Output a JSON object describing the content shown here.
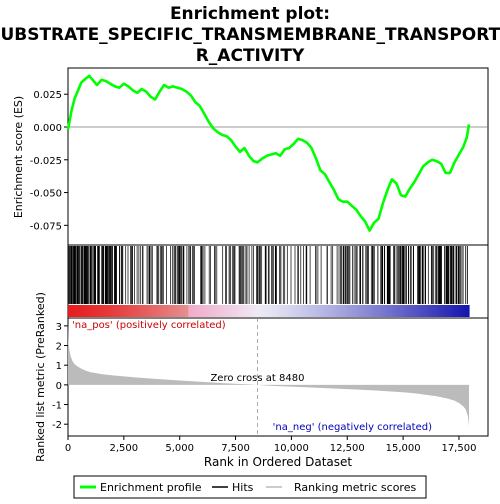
{
  "chart_data": {
    "type": "line",
    "title_lines": [
      "Enrichment plot:",
      "SUBSTRATE_SPECIFIC_TRANSMEMBRANE_TRANSPORTE",
      "R_ACTIVITY"
    ],
    "top_panel": {
      "ylabel": "Enrichment score (ES)",
      "ylim": [
        -0.09,
        0.045
      ],
      "yticks": [
        0.025,
        0.0,
        -0.025,
        -0.05,
        -0.075
      ],
      "ytick_labels": [
        "0.025",
        "0.000",
        "-0.025",
        "-0.050",
        "-0.075"
      ],
      "series": [
        {
          "name": "Enrichment profile",
          "color": "#00ff00",
          "x": [
            0,
            150,
            300,
            450,
            600,
            800,
            950,
            1100,
            1300,
            1500,
            1700,
            1900,
            2100,
            2300,
            2500,
            2700,
            2900,
            3100,
            3300,
            3500,
            3700,
            3900,
            4100,
            4300,
            4500,
            4700,
            4900,
            5100,
            5300,
            5500,
            5700,
            5900,
            6100,
            6300,
            6500,
            6700,
            6900,
            7100,
            7300,
            7500,
            7700,
            7900,
            8100,
            8300,
            8480,
            8700,
            8900,
            9100,
            9300,
            9500,
            9700,
            9900,
            10100,
            10300,
            10500,
            10700,
            10900,
            11100,
            11300,
            11500,
            11700,
            11900,
            12100,
            12300,
            12500,
            12700,
            12900,
            13100,
            13300,
            13500,
            13700,
            13900,
            14100,
            14300,
            14500,
            14700,
            14900,
            15100,
            15300,
            15500,
            15700,
            15900,
            16100,
            16300,
            16500,
            16700,
            16900,
            17100,
            17300,
            17500,
            17700,
            17850,
            17950
          ],
          "y": [
            -0.002,
            0.012,
            0.022,
            0.028,
            0.034,
            0.037,
            0.039,
            0.036,
            0.032,
            0.036,
            0.035,
            0.033,
            0.031,
            0.03,
            0.033,
            0.031,
            0.028,
            0.026,
            0.029,
            0.027,
            0.023,
            0.021,
            0.027,
            0.032,
            0.03,
            0.031,
            0.03,
            0.029,
            0.027,
            0.024,
            0.019,
            0.016,
            0.01,
            0.004,
            -0.001,
            -0.004,
            -0.006,
            -0.007,
            -0.01,
            -0.015,
            -0.019,
            -0.016,
            -0.022,
            -0.026,
            -0.027,
            -0.024,
            -0.022,
            -0.021,
            -0.02,
            -0.022,
            -0.017,
            -0.016,
            -0.013,
            -0.009,
            -0.01,
            -0.012,
            -0.016,
            -0.024,
            -0.033,
            -0.036,
            -0.042,
            -0.048,
            -0.055,
            -0.057,
            -0.057,
            -0.06,
            -0.063,
            -0.068,
            -0.072,
            -0.079,
            -0.073,
            -0.07,
            -0.058,
            -0.048,
            -0.04,
            -0.043,
            -0.052,
            -0.053,
            -0.047,
            -0.042,
            -0.036,
            -0.03,
            -0.027,
            -0.025,
            -0.026,
            -0.028,
            -0.035,
            -0.035,
            -0.027,
            -0.021,
            -0.015,
            -0.008,
            0.002
          ]
        }
      ]
    },
    "bottom_panel": {
      "ylabel": "Ranked list metric (PreRanked)",
      "xlabel": "Rank in Ordered Dataset",
      "xlim": [
        0,
        18800
      ],
      "ylim": [
        -2.6,
        3.4
      ],
      "xticks": [
        0,
        2500,
        5000,
        7500,
        10000,
        12500,
        15000,
        17500
      ],
      "xtick_labels": [
        "0",
        "2,500",
        "5,000",
        "7,500",
        "10,000",
        "12,500",
        "15,000",
        "17,500"
      ],
      "yticks": [
        3,
        2,
        1,
        0,
        -1,
        -2
      ],
      "ytick_labels": [
        "3",
        "2",
        "1",
        "0",
        "-1",
        "-2"
      ],
      "metric_x": [
        0,
        20,
        60,
        120,
        200,
        300,
        450,
        600,
        800,
        1000,
        1500,
        2000,
        3000,
        4000,
        5000,
        6000,
        7000,
        8000,
        8480,
        9000,
        10000,
        11000,
        12000,
        13000,
        14000,
        15000,
        15500,
        16000,
        16500,
        17000,
        17300,
        17500,
        17700,
        17800,
        17900,
        17950
      ],
      "metric_y": [
        3.2,
        2.2,
        1.8,
        1.45,
        1.2,
        1.05,
        0.92,
        0.82,
        0.72,
        0.65,
        0.55,
        0.48,
        0.38,
        0.3,
        0.22,
        0.15,
        0.08,
        0.03,
        0.0,
        -0.04,
        -0.09,
        -0.14,
        -0.19,
        -0.24,
        -0.3,
        -0.38,
        -0.43,
        -0.5,
        -0.58,
        -0.7,
        -0.8,
        -0.92,
        -1.1,
        -1.25,
        -1.6,
        -2.1
      ],
      "zero_cross_label": "Zero cross at 8480",
      "zero_cross_x": 8480,
      "pos_label": "'na_pos' (positively correlated)",
      "neg_label": "'na_neg' (negatively correlated)",
      "pos_color": "#cc0000",
      "neg_color": "#0000bb"
    },
    "hits": {
      "seed": 7,
      "segments": [
        [
          0,
          1800,
          95
        ],
        [
          1800,
          4000,
          40
        ],
        [
          4000,
          6200,
          38
        ],
        [
          6200,
          8500,
          30
        ],
        [
          8500,
          10500,
          28
        ],
        [
          10500,
          12000,
          12
        ],
        [
          12000,
          13500,
          30
        ],
        [
          13500,
          15000,
          38
        ],
        [
          15000,
          16500,
          35
        ],
        [
          16500,
          17950,
          45
        ]
      ]
    },
    "legend": {
      "entries": [
        {
          "label": "Enrichment profile",
          "color": "#00ff00"
        },
        {
          "label": "Hits",
          "color": "#000000"
        },
        {
          "label": "Ranking metric scores",
          "color": "#bbbbbb"
        }
      ]
    }
  }
}
